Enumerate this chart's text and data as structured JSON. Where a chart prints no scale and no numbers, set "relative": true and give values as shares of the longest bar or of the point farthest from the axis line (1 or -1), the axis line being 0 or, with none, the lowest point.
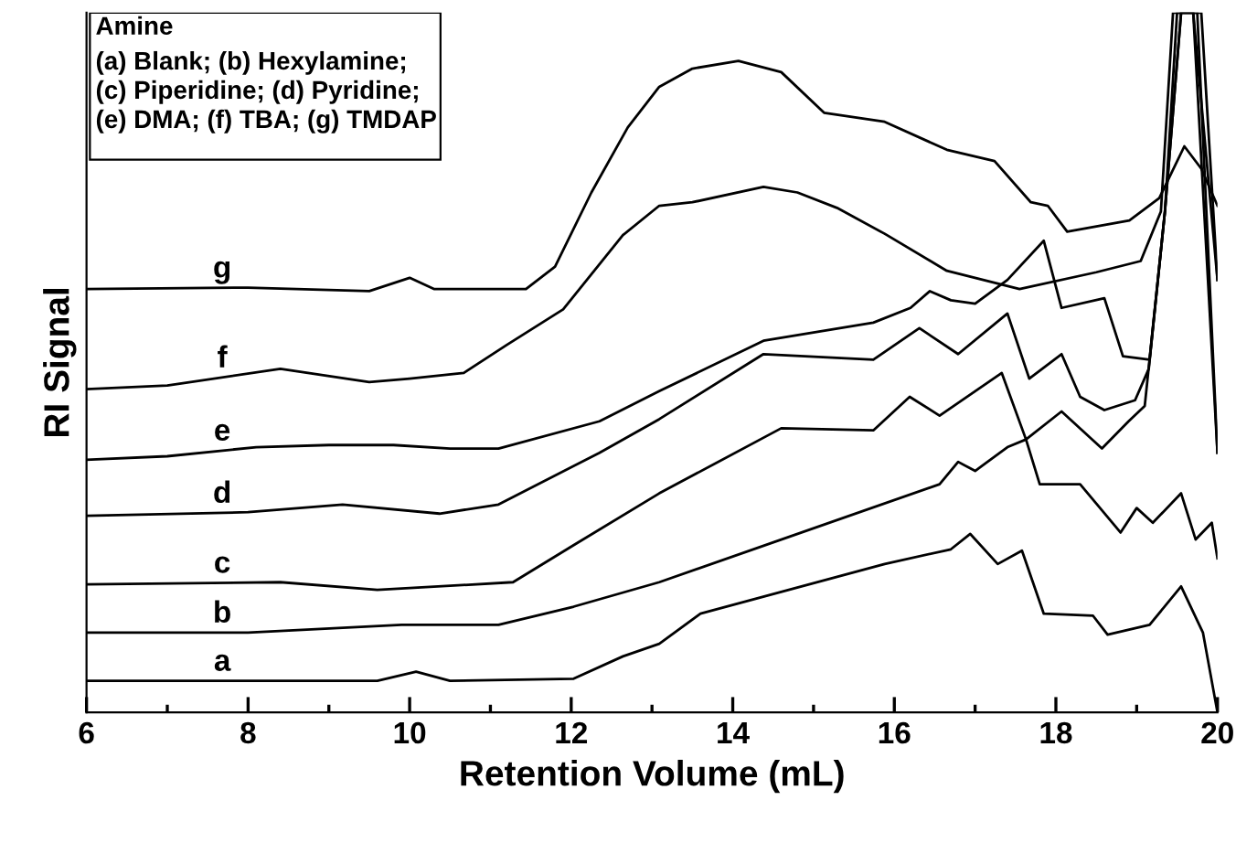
{
  "chart_data": {
    "type": "line",
    "relative": true,
    "xlabel": "Retention Volume (mL)",
    "ylabel": "RI Signal",
    "xlim": [
      6,
      20
    ],
    "xticks": [
      6,
      8,
      10,
      12,
      14,
      16,
      18,
      20
    ],
    "grid": false,
    "legend": false,
    "marker": "none",
    "line_style": "solid",
    "tick_labels": "x",
    "annotations": [
      "Amine",
      "(a) Blank; (b) Hexylamine;",
      "(c) Piperidine; (d) Pyridine;",
      "(e) DMA; (f) TBA; (g) TMDAP"
    ],
    "series": [
      {
        "name": "a",
        "color": "#000000",
        "x": [
          6,
          8,
          9.6,
          10.08,
          10.5,
          12.03,
          12.64,
          13.09,
          13.6,
          15.88,
          16.7,
          16.94,
          17.28,
          17.58,
          17.85,
          18.46,
          18.64,
          19.16,
          19.55,
          19.82,
          20
        ],
        "values": [
          0.045,
          0.045,
          0.045,
          0.058,
          0.045,
          0.048,
          0.08,
          0.098,
          0.141,
          0.212,
          0.233,
          0.255,
          0.212,
          0.231,
          0.141,
          0.138,
          0.111,
          0.125,
          0.18,
          0.114,
          0.0
        ]
      },
      {
        "name": "b",
        "color": "#000000",
        "x": [
          6,
          8,
          9.9,
          11.1,
          12.03,
          13.09,
          14.6,
          16.56,
          16.79,
          17.0,
          17.4,
          17.63,
          18.07,
          18.57,
          18.9,
          19.1,
          19.35,
          19.55,
          19.8,
          20
        ],
        "values": [
          0.114,
          0.114,
          0.125,
          0.125,
          0.151,
          0.186,
          0.247,
          0.326,
          0.358,
          0.345,
          0.379,
          0.39,
          0.43,
          0.377,
          0.416,
          0.438,
          0.716,
          1.0,
          1.0,
          0.618
        ]
      },
      {
        "name": "c",
        "color": "#000000",
        "x": [
          6,
          8.4,
          9.6,
          11.28,
          12.03,
          13.09,
          14.6,
          15.74,
          16.19,
          16.56,
          17.33,
          17.63,
          17.8,
          18.3,
          18.8,
          19.0,
          19.2,
          19.55,
          19.73,
          19.93,
          20
        ],
        "values": [
          0.183,
          0.186,
          0.175,
          0.186,
          0.239,
          0.313,
          0.406,
          0.403,
          0.451,
          0.424,
          0.485,
          0.39,
          0.326,
          0.326,
          0.257,
          0.292,
          0.271,
          0.313,
          0.247,
          0.271,
          0.22
        ]
      },
      {
        "name": "d",
        "color": "#000000",
        "x": [
          6,
          8,
          9.17,
          10.37,
          11.1,
          12.35,
          13.09,
          14.38,
          15.74,
          16.31,
          16.79,
          17.4,
          17.67,
          18.07,
          18.3,
          18.6,
          18.98,
          19.15,
          19.35,
          19.5,
          19.7,
          20
        ],
        "values": [
          0.281,
          0.286,
          0.297,
          0.284,
          0.297,
          0.371,
          0.419,
          0.512,
          0.504,
          0.549,
          0.512,
          0.57,
          0.477,
          0.512,
          0.451,
          0.432,
          0.446,
          0.491,
          0.716,
          1.0,
          1.0,
          0.371
        ]
      },
      {
        "name": "e",
        "color": "#000000",
        "x": [
          6,
          7,
          8.1,
          9.0,
          9.8,
          10.5,
          11.1,
          12.35,
          13.09,
          14.38,
          15.74,
          16.2,
          16.44,
          16.7,
          17.0,
          17.4,
          17.85,
          18.07,
          18.6,
          18.83,
          19.16,
          19.35,
          19.55,
          19.75,
          20
        ],
        "values": [
          0.361,
          0.366,
          0.379,
          0.382,
          0.382,
          0.377,
          0.377,
          0.416,
          0.459,
          0.531,
          0.557,
          0.578,
          0.602,
          0.589,
          0.584,
          0.618,
          0.674,
          0.578,
          0.592,
          0.509,
          0.504,
          0.716,
          1.0,
          1.0,
          0.371
        ]
      },
      {
        "name": "f",
        "color": "#000000",
        "x": [
          6,
          7,
          8.4,
          9.5,
          10.0,
          10.67,
          11.2,
          11.9,
          12.64,
          13.09,
          13.5,
          14.38,
          14.8,
          15.29,
          15.88,
          16.65,
          17.55,
          18.5,
          19.05,
          19.3,
          19.45,
          19.7,
          20
        ],
        "values": [
          0.462,
          0.467,
          0.491,
          0.472,
          0.477,
          0.485,
          0.525,
          0.576,
          0.682,
          0.724,
          0.729,
          0.751,
          0.743,
          0.721,
          0.684,
          0.631,
          0.605,
          0.629,
          0.645,
          0.716,
          1.0,
          1.0,
          0.618
        ]
      },
      {
        "name": "g",
        "color": "#000000",
        "x": [
          6,
          8,
          9.5,
          10.0,
          10.3,
          11.44,
          11.8,
          12.25,
          12.7,
          13.09,
          13.5,
          14.07,
          14.6,
          15.13,
          15.88,
          16.65,
          17.24,
          17.69,
          17.9,
          18.14,
          18.91,
          19.28,
          19.59,
          19.8,
          20
        ],
        "values": [
          0.605,
          0.607,
          0.602,
          0.621,
          0.605,
          0.605,
          0.637,
          0.743,
          0.836,
          0.894,
          0.92,
          0.931,
          0.915,
          0.857,
          0.844,
          0.804,
          0.788,
          0.729,
          0.724,
          0.687,
          0.703,
          0.735,
          0.809,
          0.777,
          0.724
        ]
      }
    ]
  }
}
